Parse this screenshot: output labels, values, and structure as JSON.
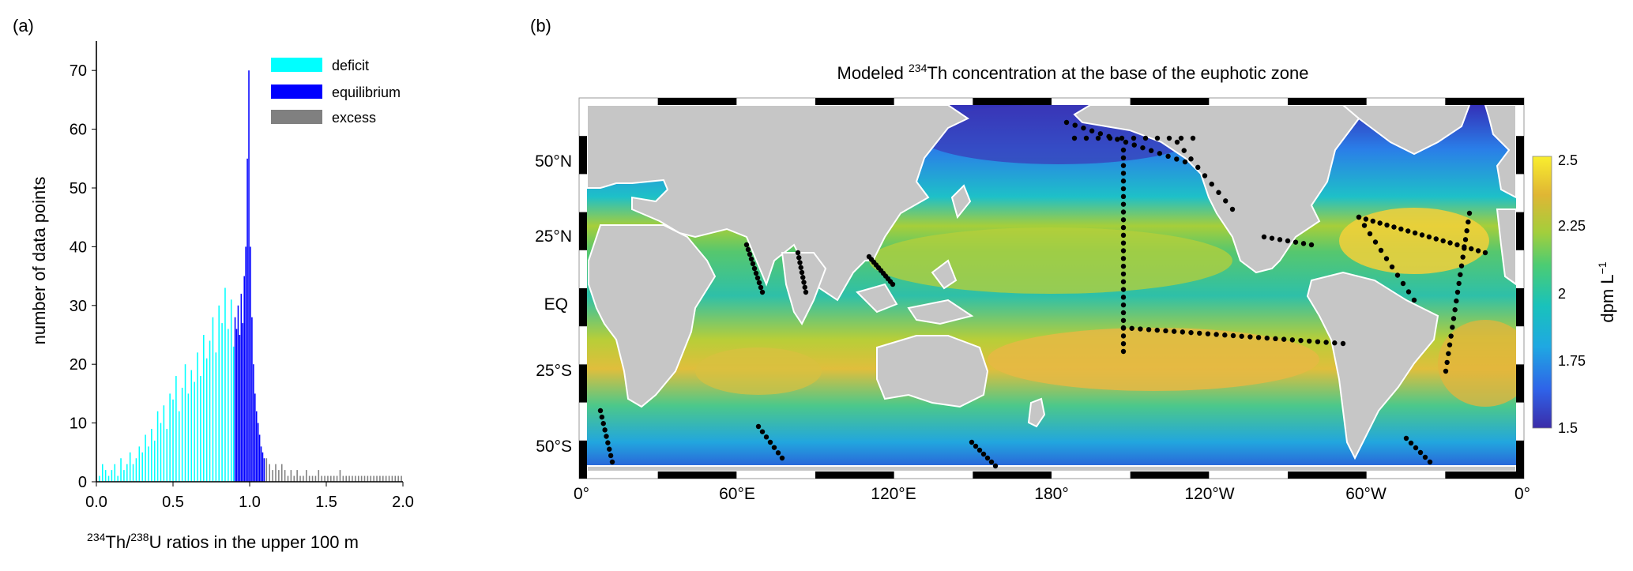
{
  "panel_a": {
    "label": "(a)"
  },
  "panel_b": {
    "label": "(b)"
  },
  "chart_data": [
    {
      "type": "bar",
      "ylabel": "number of data points",
      "xlabel": {
        "sup1": "234",
        "mid": "Th/",
        "sup2": "238",
        "rest": "U ratios in the upper 100 m"
      },
      "xlim": [
        0,
        2.0
      ],
      "ylim": [
        0,
        75
      ],
      "xticks": [
        "0.0",
        "0.5",
        "1.0",
        "1.5",
        "2.0"
      ],
      "yticks": [
        "0",
        "10",
        "20",
        "30",
        "40",
        "50",
        "60",
        "70"
      ],
      "legend_position": "top-right",
      "series": [
        {
          "name": "deficit",
          "color": "#00ffff",
          "bin_width": 0.005,
          "x": [
            0.02,
            0.04,
            0.06,
            0.08,
            0.1,
            0.12,
            0.14,
            0.16,
            0.18,
            0.2,
            0.22,
            0.24,
            0.26,
            0.28,
            0.3,
            0.32,
            0.34,
            0.36,
            0.38,
            0.4,
            0.42,
            0.44,
            0.46,
            0.48,
            0.5,
            0.52,
            0.54,
            0.56,
            0.58,
            0.6,
            0.62,
            0.64,
            0.66,
            0.68,
            0.7,
            0.72,
            0.74,
            0.76,
            0.78,
            0.8,
            0.82,
            0.84,
            0.86,
            0.88,
            0.895
          ],
          "values": [
            1,
            3,
            2,
            1,
            2,
            3,
            1,
            4,
            2,
            3,
            5,
            3,
            4,
            6,
            5,
            8,
            6,
            9,
            7,
            12,
            10,
            13,
            9,
            15,
            14,
            18,
            12,
            16,
            20,
            15,
            19,
            17,
            22,
            18,
            25,
            21,
            24,
            28,
            22,
            30,
            27,
            33,
            26,
            31,
            23
          ]
        },
        {
          "name": "equilibrium",
          "color": "#0000ff",
          "bin_width": 0.005,
          "x": [
            0.905,
            0.915,
            0.925,
            0.935,
            0.945,
            0.955,
            0.965,
            0.975,
            0.985,
            0.995,
            1.005,
            1.015,
            1.025,
            1.035,
            1.045,
            1.055,
            1.065,
            1.075,
            1.085,
            1.095
          ],
          "values": [
            28,
            26,
            30,
            25,
            32,
            27,
            35,
            40,
            55,
            70,
            40,
            28,
            20,
            15,
            12,
            10,
            8,
            6,
            5,
            4
          ]
        },
        {
          "name": "excess",
          "color": "#808080",
          "bin_width": 0.005,
          "x": [
            1.11,
            1.13,
            1.15,
            1.17,
            1.19,
            1.21,
            1.23,
            1.25,
            1.27,
            1.29,
            1.31,
            1.33,
            1.35,
            1.37,
            1.39,
            1.41,
            1.43,
            1.45,
            1.47,
            1.49,
            1.51,
            1.53,
            1.55,
            1.57,
            1.59,
            1.61,
            1.63,
            1.65,
            1.67,
            1.69,
            1.71,
            1.73,
            1.75,
            1.77,
            1.79,
            1.81,
            1.83,
            1.85,
            1.87,
            1.89,
            1.91,
            1.93,
            1.95,
            1.97,
            1.99
          ],
          "values": [
            4,
            3,
            2,
            3,
            2,
            3,
            2,
            1,
            2,
            1,
            2,
            1,
            1,
            2,
            1,
            1,
            1,
            2,
            1,
            1,
            1,
            1,
            1,
            1,
            2,
            1,
            1,
            1,
            1,
            1,
            1,
            1,
            1,
            1,
            1,
            1,
            1,
            1,
            1,
            1,
            1,
            1,
            1,
            1,
            1
          ]
        }
      ]
    },
    {
      "type": "heatmap",
      "title": {
        "pre": "Modeled ",
        "sup": "234",
        "post": "Th concentration at the base of the euphotic zone"
      },
      "xticks": [
        "0°",
        "60°E",
        "120°E",
        "180°",
        "120°W",
        "60°W",
        "0°"
      ],
      "yticks": [
        "50°N",
        "25°N",
        "EQ",
        "25°S",
        "50°S"
      ],
      "colorbar": {
        "ticks": [
          "2.5",
          "2.25",
          "2",
          "1.75",
          "1.5"
        ],
        "label_main": "dpm L",
        "label_sup": "−1",
        "range": [
          1.5,
          2.5
        ],
        "colors": [
          "#3b2ca8",
          "#2f62e8",
          "#1fa8e2",
          "#19c2bb",
          "#4ccc73",
          "#a3ce3c",
          "#e0b634",
          "#f9ee2e"
        ]
      },
      "colors": {
        "land": "#c6c6c6",
        "stations": "#000000"
      }
    }
  ]
}
